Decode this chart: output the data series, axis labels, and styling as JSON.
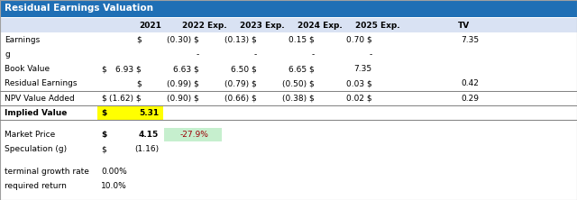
{
  "title": "Residual Earnings Valuation",
  "title_bg": "#1F6FB5",
  "title_color": "#FFFFFF",
  "col_headers": [
    "",
    "",
    "2021",
    "2022 Exp.",
    "2023 Exp.",
    "2024 Exp.",
    "2025 Exp.",
    "TV"
  ],
  "rows": [
    [
      "Earnings",
      "",
      "$",
      "(0.30) $",
      "(0.13) $",
      "0.15 $",
      "0.70 $",
      "7.35"
    ],
    [
      "g",
      "",
      "",
      "-",
      "-",
      "-",
      "-",
      ""
    ],
    [
      "Book Value",
      "$",
      "6.93 $",
      "6.63 $",
      "6.50 $",
      "6.65 $",
      "7.35",
      ""
    ],
    [
      "Residual Earnings",
      "",
      "$",
      "(0.99) $",
      "(0.79) $",
      "(0.50) $",
      "0.03 $",
      "0.42"
    ],
    [
      "NPV Value Added",
      "$",
      "(1.62) $",
      "(0.90) $",
      "(0.66) $",
      "(0.38) $",
      "0.02 $",
      "0.29"
    ],
    [
      "Implied Value",
      "$",
      "5.31",
      "",
      "",
      "",
      "",
      ""
    ]
  ],
  "market_price_label": "Market Price",
  "market_price_dollar": "$",
  "market_price_value": "4.15",
  "market_price_pct": "-27.9%",
  "speculation_label": "Speculation (g)",
  "speculation_dollar": "$",
  "speculation_value": "(1.16)",
  "terminal_growth_label": "terminal growth rate",
  "terminal_growth_value": "0.00%",
  "required_return_label": "required return",
  "required_return_value": "10.0%",
  "bg_color": "#FFFFFF",
  "header_row_color": "#D9E2F3",
  "implied_value_bold": true,
  "implied_value_yellow": "#FFFF00",
  "market_price_green": "#C6EFCE",
  "separator_color": "#808080"
}
